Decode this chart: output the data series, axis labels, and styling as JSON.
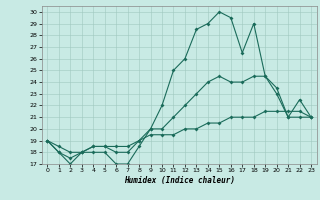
{
  "xlabel": "Humidex (Indice chaleur)",
  "xlim": [
    -0.5,
    23.5
  ],
  "ylim": [
    17,
    30.5
  ],
  "xticks": [
    0,
    1,
    2,
    3,
    4,
    5,
    6,
    7,
    8,
    9,
    10,
    11,
    12,
    13,
    14,
    15,
    16,
    17,
    18,
    19,
    20,
    21,
    22,
    23
  ],
  "yticks": [
    17,
    18,
    19,
    20,
    21,
    22,
    23,
    24,
    25,
    26,
    27,
    28,
    29,
    30
  ],
  "bg_color": "#c8eae4",
  "grid_color": "#a0c8c0",
  "line_color": "#1a6b5a",
  "line1_x": [
    0,
    1,
    2,
    3,
    4,
    5,
    6,
    7,
    8,
    9,
    10,
    11,
    12,
    13,
    14,
    15,
    16,
    17,
    18,
    19,
    20,
    21,
    22,
    23
  ],
  "line1_y": [
    19,
    18,
    17,
    18,
    18,
    18,
    17,
    17,
    18.5,
    20,
    22,
    25,
    26,
    28.5,
    29,
    30,
    29.5,
    26.5,
    29,
    24.5,
    23.5,
    21,
    22.5,
    21
  ],
  "line2_x": [
    0,
    1,
    2,
    3,
    4,
    5,
    6,
    7,
    8,
    9,
    10,
    11,
    12,
    13,
    14,
    15,
    16,
    17,
    18,
    19,
    20,
    21,
    22,
    23
  ],
  "line2_y": [
    19,
    18,
    17.5,
    18,
    18.5,
    18.5,
    18,
    18,
    19,
    20,
    20,
    21,
    22,
    23,
    24,
    24.5,
    24,
    24,
    24.5,
    24.5,
    23,
    21,
    21,
    21
  ],
  "line3_x": [
    0,
    1,
    2,
    3,
    4,
    5,
    6,
    7,
    8,
    9,
    10,
    11,
    12,
    13,
    14,
    15,
    16,
    17,
    18,
    19,
    20,
    21,
    22,
    23
  ],
  "line3_y": [
    19,
    18.5,
    18,
    18,
    18.5,
    18.5,
    18.5,
    18.5,
    19,
    19.5,
    19.5,
    19.5,
    20,
    20,
    20.5,
    20.5,
    21,
    21,
    21,
    21.5,
    21.5,
    21.5,
    21.5,
    21
  ]
}
